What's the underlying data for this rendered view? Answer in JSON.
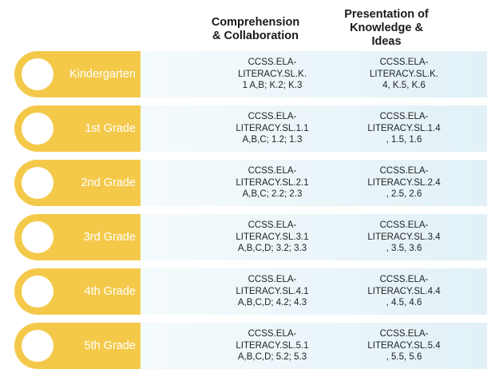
{
  "headers": {
    "comprehension": [
      "Comprehension",
      "& Collaboration"
    ],
    "presentation": [
      "Presentation of",
      "Knowledge &",
      "Ideas"
    ]
  },
  "colors": {
    "tab": "#f4c94a",
    "band": "#e1f1f7",
    "circle": "#ffffff"
  },
  "rows": [
    {
      "grade": "Kindergarten",
      "comprehension": [
        "CCSS.ELA-",
        "LITERACY.SL.K.",
        "1 A,B; K.2; K.3"
      ],
      "presentation": [
        "CCSS.ELA-",
        "LITERACY.SL.K.",
        "4, K.5, K.6"
      ]
    },
    {
      "grade": "1st Grade",
      "comprehension": [
        "CCSS.ELA-",
        "LITERACY.SL.1.1",
        "A,B,C; 1.2; 1.3"
      ],
      "presentation": [
        "CCSS.ELA-",
        "LITERACY.SL.1.4",
        ", 1.5, 1.6"
      ]
    },
    {
      "grade": "2nd Grade",
      "comprehension": [
        "CCSS.ELA-",
        "LITERACY.SL.2.1",
        "A,B,C; 2.2; 2.3"
      ],
      "presentation": [
        "CCSS.ELA-",
        "LITERACY.SL.2.4",
        ", 2.5, 2.6"
      ]
    },
    {
      "grade": "3rd Grade",
      "comprehension": [
        "CCSS.ELA-",
        "LITERACY.SL.3.1",
        "A,B,C,D; 3.2; 3.3"
      ],
      "presentation": [
        "CCSS.ELA-",
        "LITERACY.SL.3.4",
        ", 3.5, 3.6"
      ]
    },
    {
      "grade": "4th Grade",
      "comprehension": [
        "CCSS.ELA-",
        "LITERACY.SL.4.1",
        "A,B,C,D; 4.2; 4.3"
      ],
      "presentation": [
        "CCSS.ELA-",
        "LITERACY.SL.4.4",
        ", 4.5, 4.6"
      ]
    },
    {
      "grade": "5th Grade",
      "comprehension": [
        "CCSS.ELA-",
        "LITERACY.SL.5.1",
        "A,B,C,D; 5.2; 5.3"
      ],
      "presentation": [
        "CCSS.ELA-",
        "LITERACY.SL.5.4",
        ", 5.5, 5.6"
      ]
    }
  ]
}
